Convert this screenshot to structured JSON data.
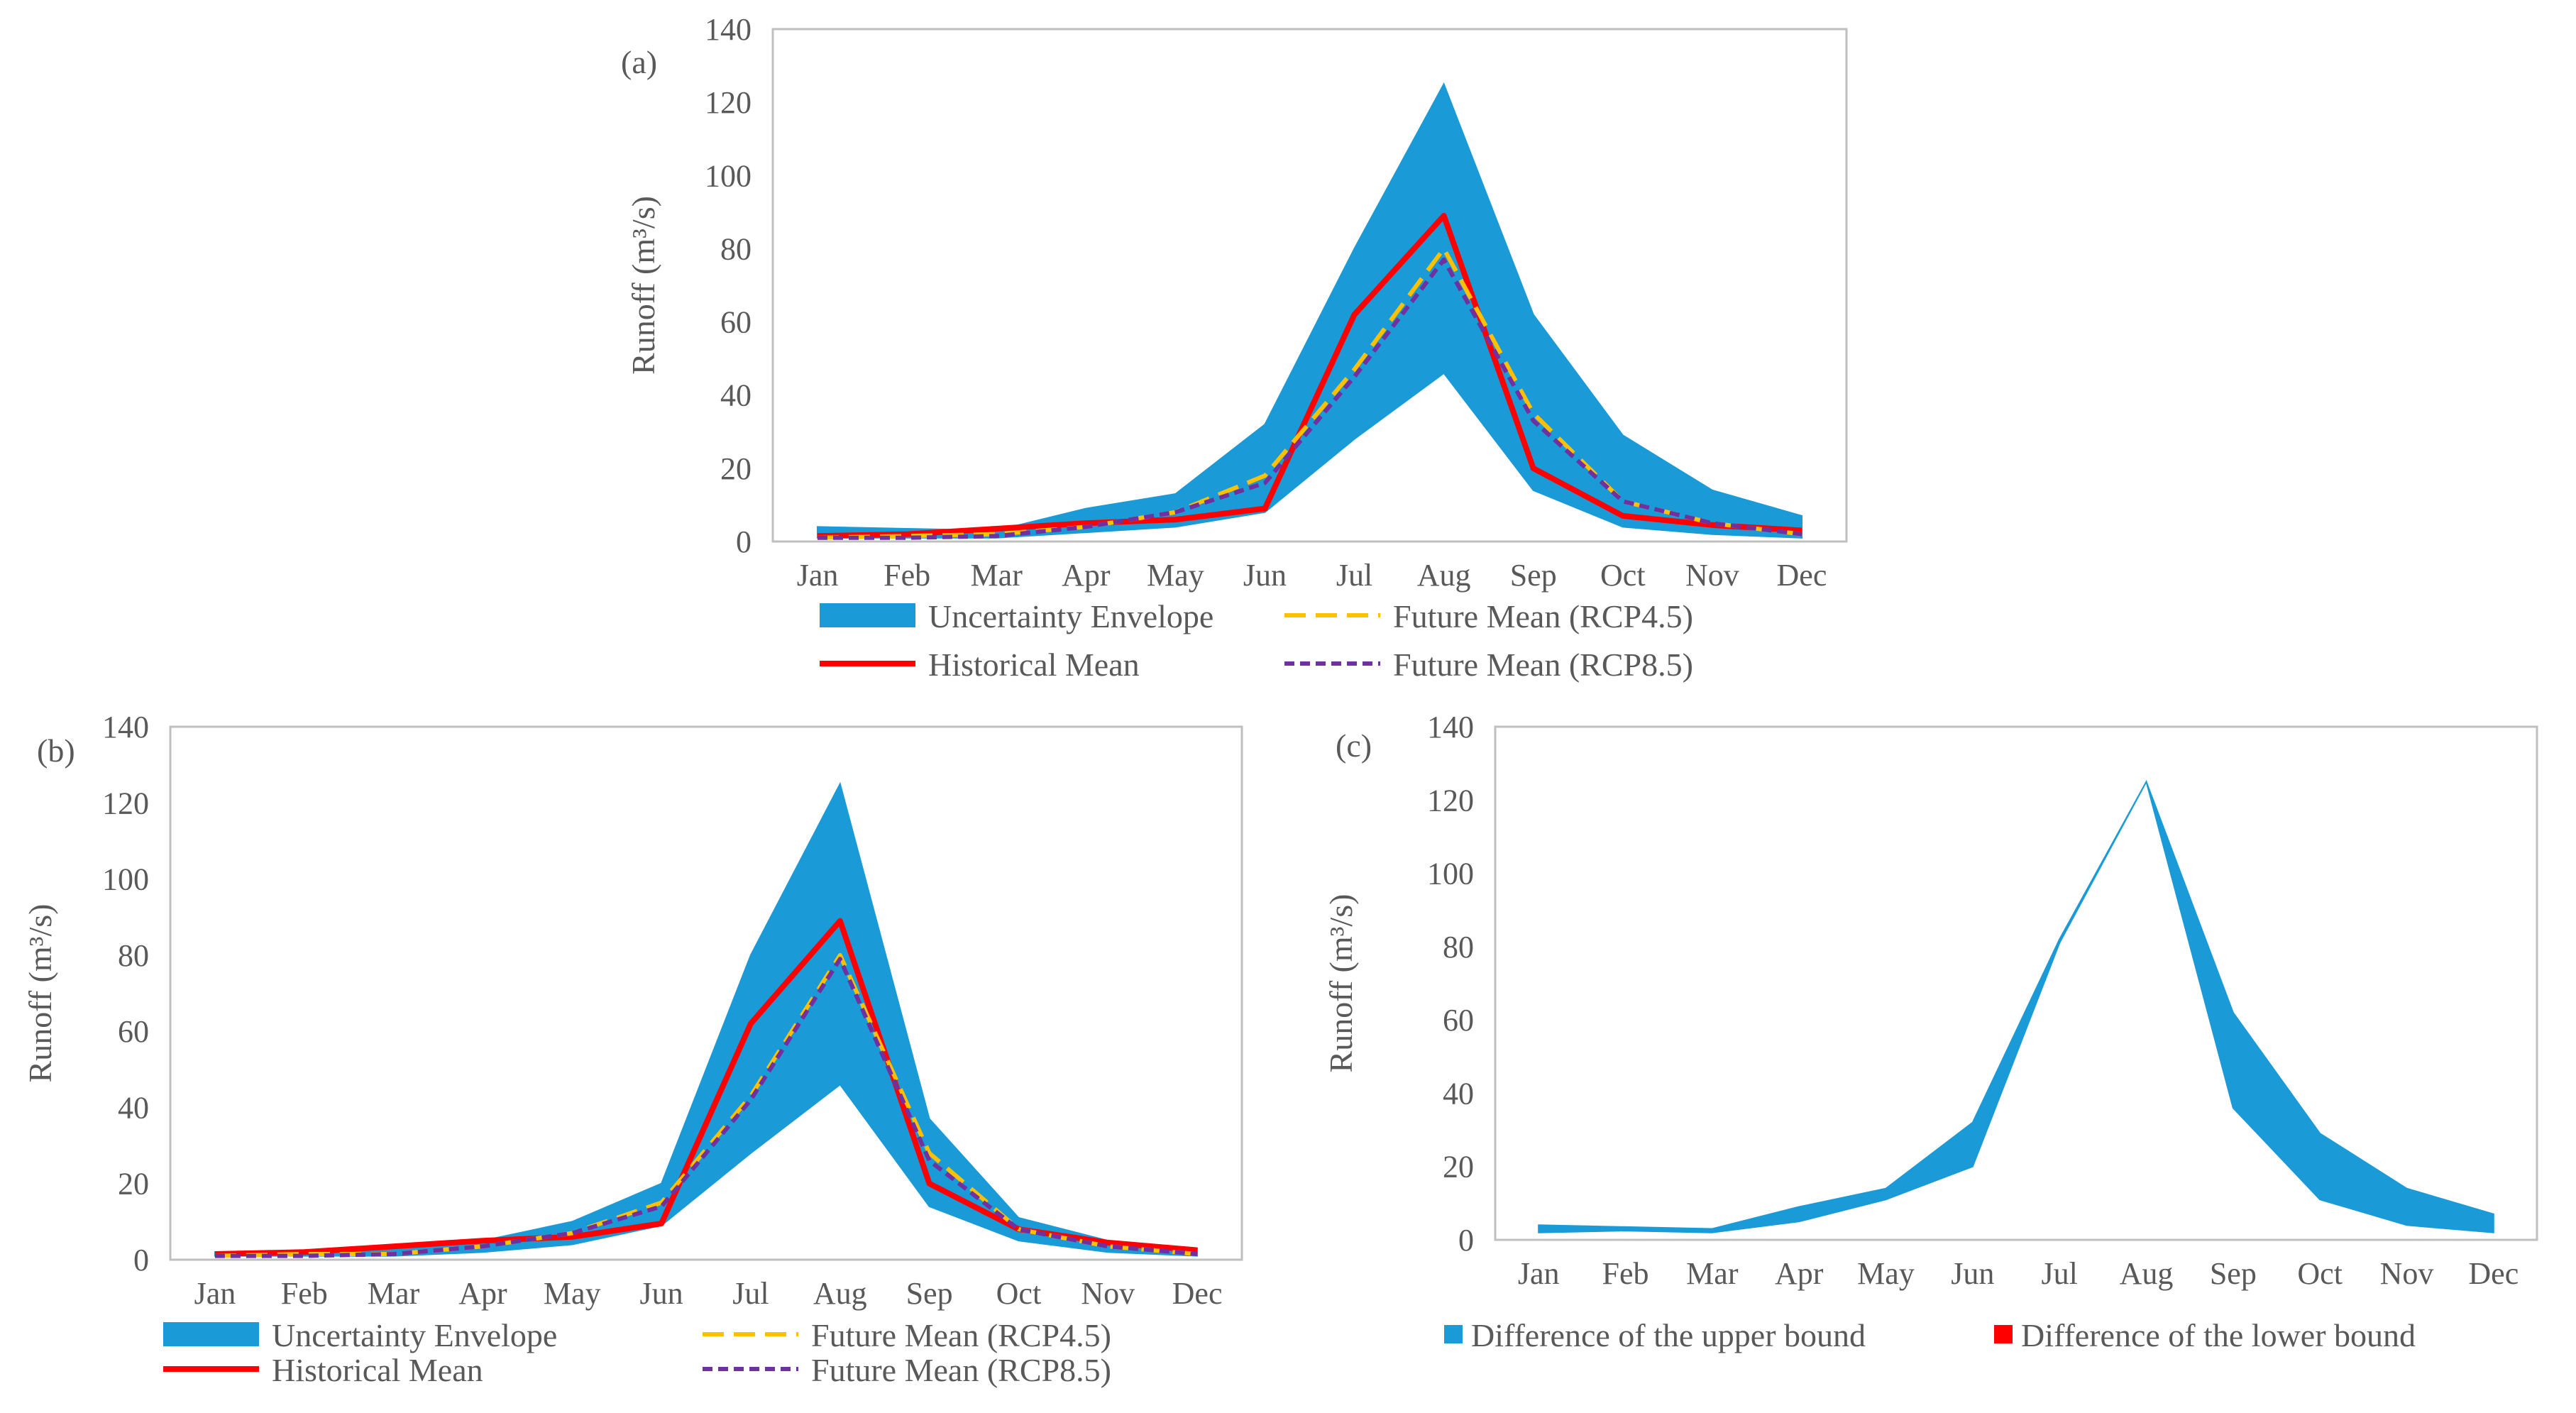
{
  "months": [
    "Jan",
    "Feb",
    "Mar",
    "Apr",
    "May",
    "Jun",
    "Jul",
    "Aug",
    "Sep",
    "Oct",
    "Nov",
    "Dec"
  ],
  "colors": {
    "envelope": "#1a9ad6",
    "historical": "#ff0000",
    "rcp45": "#ffc000",
    "rcp85": "#7030a0",
    "lower_bound": "#ff0000",
    "axis": "#bfbfbf",
    "text": "#595959"
  },
  "chart_data": [
    {
      "panel_label": "(a)",
      "type": "area",
      "ylabel": "Runoff (m³/s)",
      "ylim": [
        0,
        140
      ],
      "yticks": [
        0,
        20,
        40,
        60,
        80,
        100,
        120,
        140
      ],
      "categories": [
        "Jan",
        "Feb",
        "Mar",
        "Apr",
        "May",
        "Jun",
        "Jul",
        "Aug",
        "Sep",
        "Oct",
        "Nov",
        "Dec"
      ],
      "envelope": {
        "name": "Uncertainty Envelope",
        "lower": [
          1,
          1,
          1,
          2.5,
          4,
          8,
          28,
          46,
          14,
          4,
          2,
          1
        ],
        "upper": [
          4,
          3.5,
          3,
          9,
          13,
          32,
          80,
          125,
          62,
          29,
          14,
          7
        ]
      },
      "series": [
        {
          "name": "Historical Mean",
          "style": "solid",
          "color_key": "historical",
          "values": [
            1.5,
            2,
            3.5,
            5,
            6,
            9,
            62,
            89,
            20,
            7,
            4.5,
            3
          ]
        },
        {
          "name": "Future Mean (RCP4.5)",
          "style": "dash",
          "color_key": "rcp45",
          "values": [
            1,
            1.5,
            2,
            4,
            8,
            18,
            47,
            80,
            35,
            11,
            5,
            2
          ]
        },
        {
          "name": "Future Mean (RCP8.5)",
          "style": "dot",
          "color_key": "rcp85",
          "values": [
            1,
            1,
            1.5,
            4,
            8,
            16,
            45,
            77,
            33,
            11,
            5,
            2
          ]
        }
      ],
      "legend": [
        {
          "label": "Uncertainty Envelope",
          "kind": "patch",
          "color_key": "envelope"
        },
        {
          "label": "Future Mean (RCP4.5)",
          "kind": "dash",
          "color_key": "rcp45"
        },
        {
          "label": "Historical Mean",
          "kind": "solid",
          "color_key": "historical"
        },
        {
          "label": "Future Mean (RCP8.5)",
          "kind": "dot",
          "color_key": "rcp85"
        }
      ],
      "legend_placement": "bottom"
    },
    {
      "panel_label": "(b)",
      "type": "area",
      "ylabel": "Runoff (m³/s)",
      "ylim": [
        0,
        140
      ],
      "yticks": [
        0,
        20,
        40,
        60,
        80,
        100,
        120,
        140
      ],
      "categories": [
        "Jan",
        "Feb",
        "Mar",
        "Apr",
        "May",
        "Jun",
        "Jul",
        "Aug",
        "Sep",
        "Oct",
        "Nov",
        "Dec"
      ],
      "envelope": {
        "name": "Uncertainty Envelope",
        "lower": [
          1,
          1,
          1,
          2,
          4,
          9,
          28,
          46,
          14,
          5,
          2,
          1
        ],
        "upper": [
          2,
          2.5,
          3,
          5,
          10,
          20,
          80,
          125,
          37,
          11,
          5,
          3
        ]
      },
      "series": [
        {
          "name": "Historical Mean",
          "style": "solid",
          "color_key": "historical",
          "values": [
            1.5,
            2,
            3.5,
            5,
            6,
            9.5,
            62,
            89,
            20,
            8,
            4.5,
            2.5
          ]
        },
        {
          "name": "Future Mean (RCP4.5)",
          "style": "dash",
          "color_key": "rcp45",
          "values": [
            1,
            1.5,
            1.5,
            3.5,
            7,
            15,
            43,
            80,
            28,
            8,
            3.5,
            1.5
          ]
        },
        {
          "name": "Future Mean (RCP8.5)",
          "style": "dot",
          "color_key": "rcp85",
          "values": [
            1,
            1,
            1.5,
            3.5,
            7,
            14,
            42,
            79,
            26,
            8,
            3.5,
            1.5
          ]
        }
      ],
      "legend": [
        {
          "label": "Uncertainty Envelope",
          "kind": "patch",
          "color_key": "envelope"
        },
        {
          "label": "Future Mean (RCP4.5)",
          "kind": "dash",
          "color_key": "rcp45"
        },
        {
          "label": "Historical Mean",
          "kind": "solid",
          "color_key": "historical"
        },
        {
          "label": "Future Mean (RCP8.5)",
          "kind": "dot",
          "color_key": "rcp85"
        }
      ],
      "legend_placement": "bottom"
    },
    {
      "panel_label": "(c)",
      "type": "area",
      "ylabel": "Runoff (m³/s)",
      "ylim": [
        0,
        140
      ],
      "yticks": [
        0,
        20,
        40,
        60,
        80,
        100,
        120,
        140
      ],
      "categories": [
        "Jan",
        "Feb",
        "Mar",
        "Apr",
        "May",
        "Jun",
        "Jul",
        "Aug",
        "Sep",
        "Oct",
        "Nov",
        "Dec"
      ],
      "series": [
        {
          "name": "Difference of the upper bound",
          "color_key": "envelope",
          "lower": [
            2,
            2.5,
            2,
            5,
            11,
            20,
            81,
            125,
            36,
            11,
            4,
            2
          ],
          "upper": [
            4,
            3.5,
            3,
            9,
            14,
            32,
            82,
            125,
            62,
            29,
            14,
            7
          ]
        },
        {
          "name": "Difference of the lower bound",
          "color_key": "lower_bound",
          "lower": [
            0,
            0,
            0,
            0,
            0,
            0,
            0,
            0,
            0,
            0,
            0,
            0
          ],
          "upper": [
            0,
            0,
            0,
            0,
            0,
            0,
            0,
            0,
            0,
            0,
            0,
            0
          ]
        }
      ],
      "legend": [
        {
          "label": "Difference of the upper bound",
          "kind": "square",
          "color_key": "envelope"
        },
        {
          "label": "Difference of the lower bound",
          "kind": "square",
          "color_key": "lower_bound"
        }
      ],
      "legend_placement": "bottom"
    }
  ]
}
